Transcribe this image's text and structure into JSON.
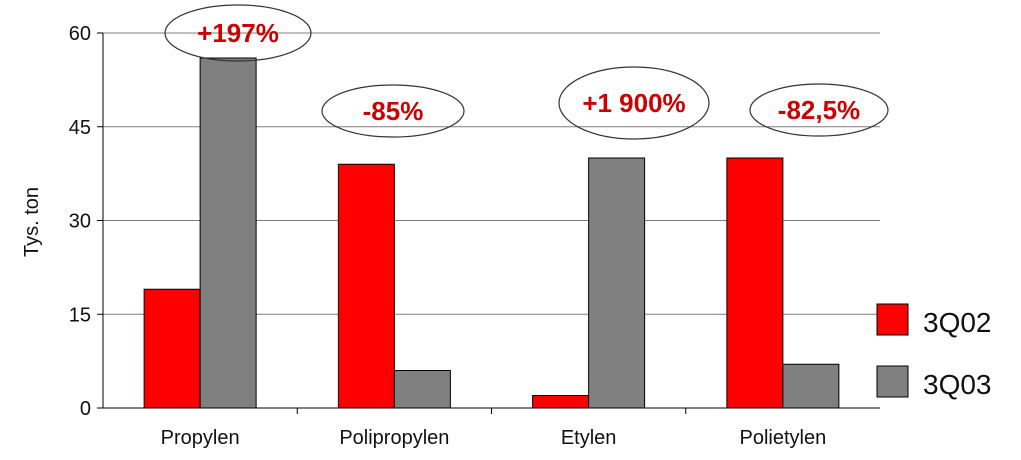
{
  "chart_data": {
    "type": "bar",
    "title": "",
    "xlabel": "",
    "ylabel": "Tys. ton",
    "ylim": [
      0,
      60
    ],
    "yticks": [
      "0",
      "15",
      "30",
      "45",
      "60"
    ],
    "grid": true,
    "legend_position": "right",
    "categories": [
      "Propylen",
      "Polipropylen",
      "Etylen",
      "Polietylen"
    ],
    "series": [
      {
        "name": "3Q02",
        "color": "#ff0000",
        "values": [
          19,
          39,
          2,
          40
        ]
      },
      {
        "name": "3Q03",
        "color": "#808080",
        "values": [
          56,
          6,
          40,
          7
        ]
      }
    ],
    "annotations": [
      {
        "category": "Propylen",
        "label": "+197%"
      },
      {
        "category": "Polipropylen",
        "label": "-85%"
      },
      {
        "category": "Etylen",
        "label": "+1 900%"
      },
      {
        "category": "Polietylen",
        "label": "-82,5%"
      }
    ],
    "annotation_color": "#cc0000"
  }
}
